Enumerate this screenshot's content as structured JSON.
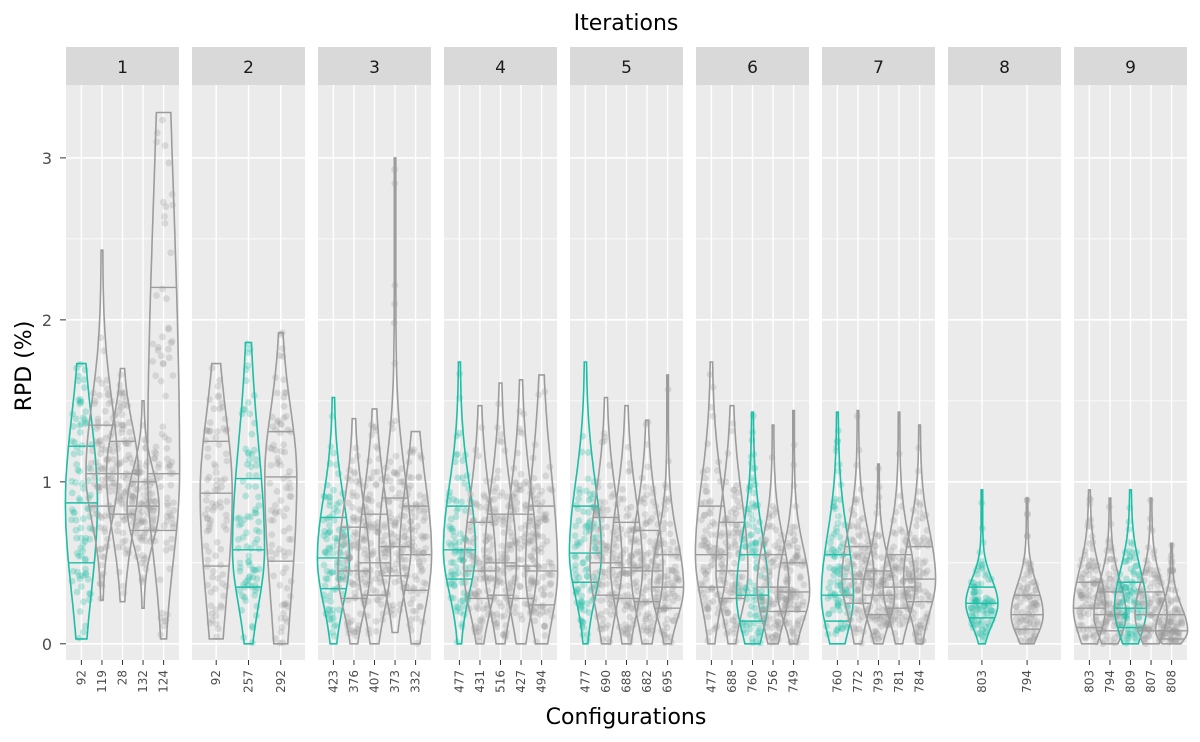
{
  "chart_data": {
    "type": "violin",
    "title": "Iterations",
    "xlabel": "Configurations",
    "ylabel": "RPD (%)",
    "ylim": [
      -0.1,
      3.45
    ],
    "yticks": [
      0,
      1,
      2,
      3
    ],
    "colors": {
      "elite": "#1cbea6",
      "other": "#9c9c9c"
    },
    "panels": [
      {
        "label": "1",
        "configs": [
          {
            "name": "92",
            "elite": true,
            "min": 0.03,
            "max": 1.73,
            "q1": 0.5,
            "median": 0.87,
            "q3": 1.22
          },
          {
            "name": "119",
            "elite": false,
            "min": 0.27,
            "max": 2.43,
            "q1": 0.85,
            "median": 1.05,
            "q3": 1.35
          },
          {
            "name": "28",
            "elite": false,
            "min": 0.26,
            "max": 1.7,
            "q1": 0.8,
            "median": 1.05,
            "q3": 1.25
          },
          {
            "name": "132",
            "elite": false,
            "min": 0.22,
            "max": 1.5,
            "q1": 0.7,
            "median": 0.85,
            "q3": 1.0
          },
          {
            "name": "124",
            "elite": false,
            "min": 0.03,
            "max": 3.28,
            "q1": 0.7,
            "median": 1.05,
            "q3": 2.2
          }
        ]
      },
      {
        "label": "2",
        "configs": [
          {
            "name": "92",
            "elite": false,
            "min": 0.03,
            "max": 1.73,
            "q1": 0.48,
            "median": 0.93,
            "q3": 1.25
          },
          {
            "name": "257",
            "elite": true,
            "min": 0.0,
            "max": 1.86,
            "q1": 0.35,
            "median": 0.58,
            "q3": 1.02
          },
          {
            "name": "292",
            "elite": false,
            "min": 0.0,
            "max": 1.92,
            "q1": 0.51,
            "median": 1.03,
            "q3": 1.31
          }
        ]
      },
      {
        "label": "3",
        "configs": [
          {
            "name": "423",
            "elite": true,
            "min": 0.0,
            "max": 1.52,
            "q1": 0.34,
            "median": 0.53,
            "q3": 0.78
          },
          {
            "name": "376",
            "elite": false,
            "min": 0.0,
            "max": 1.39,
            "q1": 0.28,
            "median": 0.45,
            "q3": 0.72
          },
          {
            "name": "407",
            "elite": false,
            "min": 0.0,
            "max": 1.45,
            "q1": 0.3,
            "median": 0.5,
            "q3": 0.8
          },
          {
            "name": "373",
            "elite": false,
            "min": 0.07,
            "max": 3.0,
            "q1": 0.42,
            "median": 0.6,
            "q3": 0.9
          },
          {
            "name": "332",
            "elite": false,
            "min": 0.0,
            "max": 1.31,
            "q1": 0.33,
            "median": 0.55,
            "q3": 0.85
          }
        ]
      },
      {
        "label": "4",
        "configs": [
          {
            "name": "477",
            "elite": true,
            "min": 0.0,
            "max": 1.74,
            "q1": 0.4,
            "median": 0.58,
            "q3": 0.85
          },
          {
            "name": "431",
            "elite": false,
            "min": 0.0,
            "max": 1.47,
            "q1": 0.28,
            "median": 0.45,
            "q3": 0.75
          },
          {
            "name": "516",
            "elite": false,
            "min": 0.0,
            "max": 1.61,
            "q1": 0.3,
            "median": 0.5,
            "q3": 0.8
          },
          {
            "name": "427",
            "elite": false,
            "min": 0.0,
            "max": 1.63,
            "q1": 0.28,
            "median": 0.48,
            "q3": 0.8
          },
          {
            "name": "494",
            "elite": false,
            "min": 0.0,
            "max": 1.66,
            "q1": 0.24,
            "median": 0.45,
            "q3": 0.85
          }
        ]
      },
      {
        "label": "5",
        "configs": [
          {
            "name": "477",
            "elite": true,
            "min": 0.0,
            "max": 1.74,
            "q1": 0.38,
            "median": 0.56,
            "q3": 0.85
          },
          {
            "name": "690",
            "elite": false,
            "min": 0.0,
            "max": 1.52,
            "q1": 0.3,
            "median": 0.5,
            "q3": 0.78
          },
          {
            "name": "688",
            "elite": false,
            "min": 0.0,
            "max": 1.47,
            "q1": 0.28,
            "median": 0.47,
            "q3": 0.75
          },
          {
            "name": "682",
            "elite": false,
            "min": 0.0,
            "max": 1.38,
            "q1": 0.26,
            "median": 0.45,
            "q3": 0.7
          },
          {
            "name": "695",
            "elite": false,
            "min": 0.0,
            "max": 1.66,
            "q1": 0.22,
            "median": 0.35,
            "q3": 0.55
          }
        ]
      },
      {
        "label": "6",
        "configs": [
          {
            "name": "477",
            "elite": false,
            "min": 0.0,
            "max": 1.74,
            "q1": 0.35,
            "median": 0.55,
            "q3": 0.85
          },
          {
            "name": "688",
            "elite": false,
            "min": 0.0,
            "max": 1.47,
            "q1": 0.28,
            "median": 0.45,
            "q3": 0.75
          },
          {
            "name": "760",
            "elite": true,
            "min": 0.0,
            "max": 1.43,
            "q1": 0.14,
            "median": 0.3,
            "q3": 0.55
          },
          {
            "name": "756",
            "elite": false,
            "min": 0.0,
            "max": 1.35,
            "q1": 0.2,
            "median": 0.35,
            "q3": 0.55
          },
          {
            "name": "749",
            "elite": false,
            "min": 0.0,
            "max": 1.44,
            "q1": 0.2,
            "median": 0.32,
            "q3": 0.5
          }
        ]
      },
      {
        "label": "7",
        "configs": [
          {
            "name": "760",
            "elite": true,
            "min": 0.0,
            "max": 1.43,
            "q1": 0.14,
            "median": 0.3,
            "q3": 0.55
          },
          {
            "name": "772",
            "elite": false,
            "min": 0.0,
            "max": 1.44,
            "q1": 0.25,
            "median": 0.4,
            "q3": 0.6
          },
          {
            "name": "793",
            "elite": false,
            "min": 0.0,
            "max": 1.11,
            "q1": 0.18,
            "median": 0.3,
            "q3": 0.45
          },
          {
            "name": "781",
            "elite": false,
            "min": 0.0,
            "max": 1.43,
            "q1": 0.22,
            "median": 0.35,
            "q3": 0.55
          },
          {
            "name": "784",
            "elite": false,
            "min": 0.0,
            "max": 1.35,
            "q1": 0.26,
            "median": 0.4,
            "q3": 0.6
          }
        ]
      },
      {
        "label": "8",
        "configs": [
          {
            "name": "803",
            "elite": true,
            "min": 0.0,
            "max": 0.95,
            "q1": 0.16,
            "median": 0.25,
            "q3": 0.35
          },
          {
            "name": "794",
            "elite": false,
            "min": 0.0,
            "max": 0.9,
            "q1": 0.09,
            "median": 0.18,
            "q3": 0.3
          }
        ]
      },
      {
        "label": "9",
        "configs": [
          {
            "name": "803",
            "elite": false,
            "min": 0.0,
            "max": 0.95,
            "q1": 0.1,
            "median": 0.22,
            "q3": 0.38
          },
          {
            "name": "794",
            "elite": false,
            "min": 0.0,
            "max": 0.9,
            "q1": 0.08,
            "median": 0.18,
            "q3": 0.32
          },
          {
            "name": "809",
            "elite": true,
            "min": 0.0,
            "max": 0.95,
            "q1": 0.1,
            "median": 0.22,
            "q3": 0.38
          },
          {
            "name": "807",
            "elite": false,
            "min": 0.0,
            "max": 0.9,
            "q1": 0.08,
            "median": 0.18,
            "q3": 0.32
          },
          {
            "name": "808",
            "elite": false,
            "min": 0.0,
            "max": 0.62,
            "q1": 0.03,
            "median": 0.08,
            "q3": 0.18
          }
        ]
      }
    ]
  }
}
